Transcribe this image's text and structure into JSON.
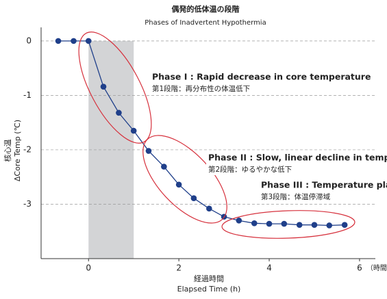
{
  "chart_data": {
    "type": "line",
    "title": "偶発的低体温の段階",
    "subtitle": "Phases of Inadvertent Hypothermia",
    "y_label": [
      "核心温",
      "ΔCore Temp (℃)"
    ],
    "x_label": [
      "経過時間",
      "Elapsed Time (h)"
    ],
    "x_unit": "（時間）",
    "x": [
      -0.67,
      -0.33,
      0,
      0.33,
      0.67,
      1,
      1.33,
      1.67,
      2,
      2.33,
      2.67,
      3,
      3.33,
      3.67,
      4,
      4.33,
      4.67,
      5,
      5.33,
      5.67
    ],
    "series": [
      {
        "color": "#1f3f8a",
        "values": [
          0,
          0,
          0,
          -0.84,
          -1.32,
          -1.65,
          -2.02,
          -2.31,
          -2.64,
          -2.89,
          -3.08,
          -3.23,
          -3.3,
          -3.35,
          -3.36,
          -3.36,
          -3.38,
          -3.38,
          -3.39,
          -3.38
        ]
      }
    ],
    "shaded_x": [
      0,
      1
    ],
    "xlim": [
      -1.05,
      6.35
    ],
    "xticks": [
      0,
      2,
      4,
      6
    ],
    "ylim": [
      -4,
      0.25
    ],
    "yticks": [
      0,
      -1,
      -2,
      -3
    ],
    "grid": true,
    "annotations": [
      {
        "title": "Phase I : Rapid decrease in core temperature",
        "text": "第1段階：再分布性の体温低下"
      },
      {
        "title": "Phase II : Slow, linear decline in temperature",
        "text": "第2段階：ゆるやかな低下"
      },
      {
        "title": "Phase III : Temperature plateau",
        "text": "第3段階：体温停滞域"
      }
    ]
  }
}
